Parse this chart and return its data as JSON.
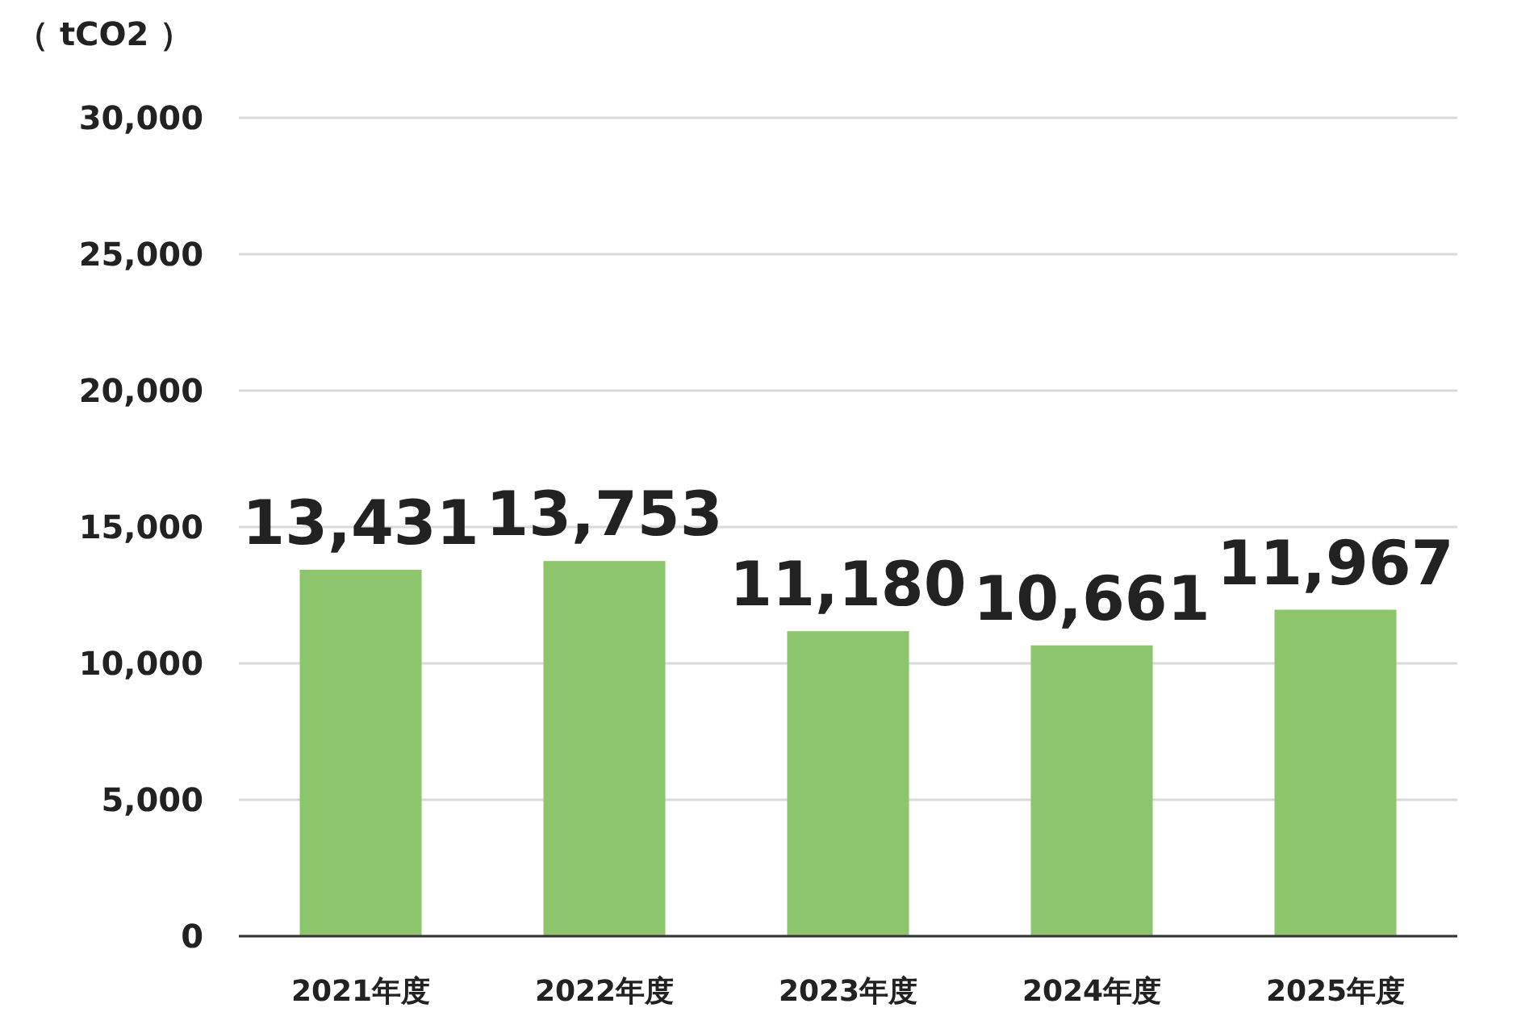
{
  "chart_data": {
    "type": "bar",
    "ylabel": "（ tCO2 ）",
    "categories": [
      "2021年度",
      "2022年度",
      "2023年度",
      "2024年度",
      "2025年度"
    ],
    "values": [
      13431,
      13753,
      11180,
      10661,
      11967
    ],
    "value_labels": [
      "13,431",
      "13,753",
      "11,180",
      "10,661",
      "11,967"
    ],
    "color": "#8cc56c",
    "ylim": [
      0,
      30000
    ],
    "yticks": [
      {
        "value": 0,
        "label": "0"
      },
      {
        "value": 5000,
        "label": "5,000"
      },
      {
        "value": 10000,
        "label": "10,000"
      },
      {
        "value": 15000,
        "label": "15,000"
      },
      {
        "value": 20000,
        "label": "20,000"
      },
      {
        "value": 25000,
        "label": "25,000"
      },
      {
        "value": 30000,
        "label": "30,000"
      }
    ],
    "grid": "y"
  }
}
